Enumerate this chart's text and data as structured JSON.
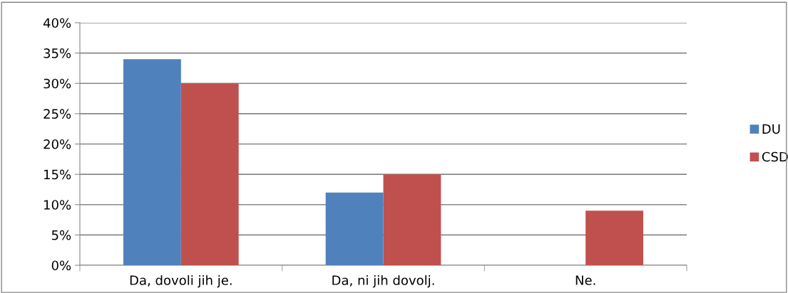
{
  "chart_data": {
    "type": "bar",
    "categories": [
      "Da, dovoli jih je.",
      "Da, ni jih dovolj.",
      "Ne."
    ],
    "series": [
      {
        "name": "DU",
        "color": "#4f81bd",
        "values": [
          34,
          12,
          0
        ]
      },
      {
        "name": "CSD",
        "color": "#c0504d",
        "values": [
          30,
          15,
          9
        ]
      }
    ],
    "ylim": [
      0,
      40
    ],
    "yticks": [
      {
        "value": 0,
        "label": "0%"
      },
      {
        "value": 5,
        "label": "5%"
      },
      {
        "value": 10,
        "label": "10%"
      },
      {
        "value": 15,
        "label": "15%"
      },
      {
        "value": 20,
        "label": "20%"
      },
      {
        "value": 25,
        "label": "25%"
      },
      {
        "value": 30,
        "label": "30%"
      },
      {
        "value": 35,
        "label": "35%"
      },
      {
        "value": 40,
        "label": "40%"
      }
    ],
    "grid": "y",
    "legend": "right"
  }
}
